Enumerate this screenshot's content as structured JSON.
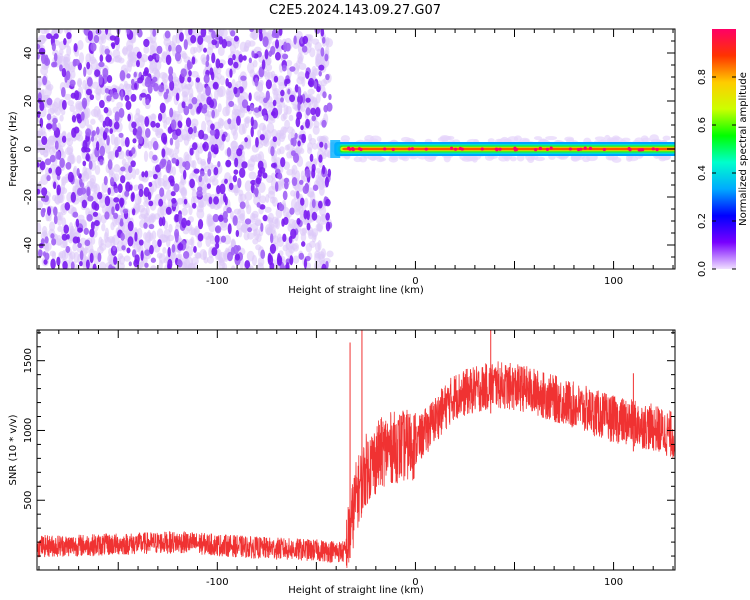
{
  "title": "C2E5.2024.143.09.27.G07",
  "colors": {
    "snr_line": "#f03232",
    "spec_noise_light": "#dcc8f8",
    "spec_noise_dark": "#7a1cf0",
    "colorbar_stops": [
      "#f0e0ff",
      "#7800ff",
      "#0000ff",
      "#00aaff",
      "#00ffcc",
      "#00ff00",
      "#ccff00",
      "#ffcc00",
      "#ff3300",
      "#ff0066"
    ]
  },
  "chart_data": [
    {
      "type": "heatmap",
      "name": "spectrogram",
      "xlabel": "Height of straight line (km)",
      "ylabel": "Frequency (Hz)",
      "xlim": [
        -191,
        131
      ],
      "ylim": [
        -50,
        50
      ],
      "xticks": [
        -100,
        0,
        100
      ],
      "yticks": [
        -40,
        -20,
        0,
        20,
        40
      ],
      "noise_region_x": [
        -191,
        -43
      ],
      "signal_start_x": -43,
      "signal_center_hz": 0,
      "colorbar": {
        "label": "Normalized spectral amplitude",
        "range": [
          0.0,
          1.0
        ],
        "ticks": [
          0.0,
          0.2,
          0.4,
          0.6,
          0.8
        ]
      }
    },
    {
      "type": "line",
      "name": "snr",
      "xlabel": "Height of straight line (km)",
      "ylabel": "SNR (10 * v/v)",
      "xlim": [
        -191,
        131
      ],
      "ylim": [
        0,
        1720
      ],
      "xticks": [
        -100,
        0,
        100
      ],
      "yticks": [
        500,
        1000,
        1500
      ],
      "trend_points": [
        {
          "x": -191,
          "y": 170
        },
        {
          "x": -160,
          "y": 180
        },
        {
          "x": -120,
          "y": 200
        },
        {
          "x": -80,
          "y": 160
        },
        {
          "x": -50,
          "y": 140
        },
        {
          "x": -35,
          "y": 130
        },
        {
          "x": -30,
          "y": 520
        },
        {
          "x": -25,
          "y": 720
        },
        {
          "x": -15,
          "y": 870
        },
        {
          "x": 0,
          "y": 900
        },
        {
          "x": 10,
          "y": 1080
        },
        {
          "x": 20,
          "y": 1250
        },
        {
          "x": 40,
          "y": 1330
        },
        {
          "x": 55,
          "y": 1300
        },
        {
          "x": 80,
          "y": 1180
        },
        {
          "x": 100,
          "y": 1080
        },
        {
          "x": 120,
          "y": 1020
        },
        {
          "x": 131,
          "y": 960
        }
      ],
      "spikes": [
        {
          "x": -27,
          "y": 1720
        },
        {
          "x": 38,
          "y": 1720
        },
        {
          "x": 110,
          "y": 1410
        },
        {
          "x": -33,
          "y": 1630
        }
      ]
    }
  ]
}
